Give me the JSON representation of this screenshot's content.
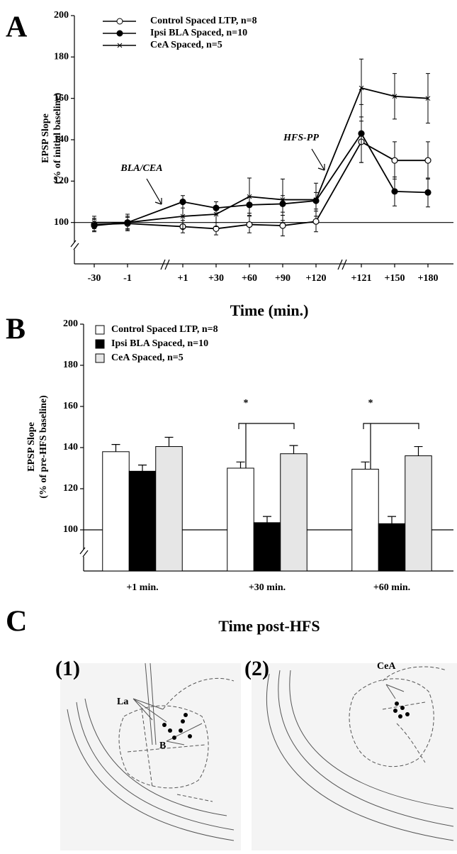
{
  "chart_data": [
    {
      "type": "line",
      "panel_label": "A",
      "xlabel": "Time (min.)",
      "ylabel": [
        "EPSP Slope",
        "(% of initial baseline)"
      ],
      "categories": [
        "-30",
        "-1",
        "+1",
        "+30",
        "+60",
        "+90",
        "+120",
        "+121",
        "+150",
        "+180"
      ],
      "ylim": [
        80,
        200
      ],
      "yticks": [
        100,
        120,
        140,
        160,
        180,
        200
      ],
      "annotations": [
        "BLA/CEA",
        "HFS-PP"
      ],
      "series": [
        {
          "name": "Control Spaced LTP, n=8",
          "marker": "open-circle",
          "color": "#000000",
          "values": [
            99,
            99.5,
            98,
            97,
            99,
            98.5,
            100.5,
            139,
            130,
            130
          ],
          "errors": [
            3,
            3,
            3,
            3,
            4,
            5,
            5,
            10,
            9,
            9
          ]
        },
        {
          "name": "Ipsi BLA Spaced, n=10",
          "marker": "filled-circle",
          "color": "#000000",
          "values": [
            98.5,
            100,
            110,
            107,
            108.5,
            109,
            110.5,
            143,
            115,
            114.5
          ],
          "errors": [
            3,
            3,
            3,
            3,
            4,
            4,
            4,
            14,
            7,
            7
          ]
        },
        {
          "name": "CeA Spaced, n=5",
          "marker": "cross",
          "color": "#000000",
          "values": [
            100,
            100,
            103,
            104,
            112.5,
            111,
            111,
            165,
            161,
            160
          ],
          "errors": [
            3,
            4,
            6,
            6,
            9,
            10,
            8,
            14,
            11,
            12
          ]
        }
      ]
    },
    {
      "type": "bar",
      "panel_label": "B",
      "xlabel": "Time post-HFS",
      "ylabel": [
        "EPSP Slope",
        "(% of pre-HFS baseline)"
      ],
      "categories": [
        "+1 min.",
        "+30 min.",
        "+60 min."
      ],
      "significance_labels": [
        null,
        "*",
        "*"
      ],
      "ylim": [
        80,
        200
      ],
      "yticks": [
        100,
        120,
        140,
        160,
        180,
        200
      ],
      "series": [
        {
          "name": "Control Spaced LTP, n=8",
          "color": "#ffffff",
          "values": [
            138,
            130,
            129.5
          ],
          "errors": [
            3.5,
            3,
            3.5
          ]
        },
        {
          "name": "Ipsi BLA Spaced, n=10",
          "color": "#000000",
          "values": [
            128.5,
            103.5,
            103
          ],
          "errors": [
            3,
            3,
            3.5
          ]
        },
        {
          "name": "CeA Spaced, n=5",
          "color": "#e6e6e6",
          "values": [
            140.5,
            137,
            136
          ],
          "errors": [
            4.5,
            4,
            4.5
          ]
        }
      ]
    }
  ],
  "histology": {
    "panel_label": "C",
    "images": [
      {
        "label": "(1)",
        "annotations": [
          "La",
          "B"
        ]
      },
      {
        "label": "(2)",
        "annotations": [
          "CeA"
        ]
      }
    ]
  }
}
